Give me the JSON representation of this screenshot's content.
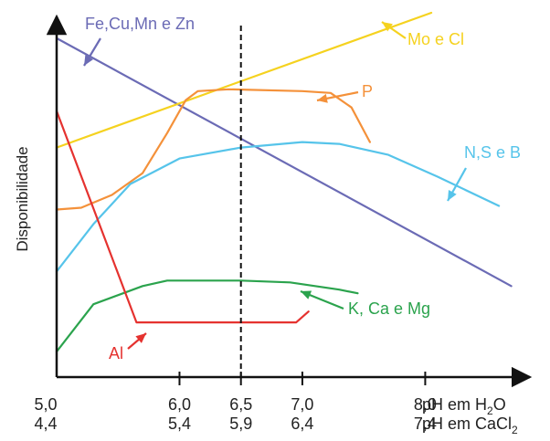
{
  "chart_data": {
    "type": "line",
    "ylabel": "Disponibilidade",
    "x_axis": {
      "title_line1": "pH em H",
      "title_line1_sub": "2",
      "title_line1_tail": "O",
      "title_line2": "pH em CaCl",
      "title_line2_sub": "2",
      "range_ph_h2o": [
        5.0,
        8.8
      ],
      "ticks": [
        {
          "h2o": 5.0,
          "h2o_label": "5,0",
          "cacl2_label": "4,4"
        },
        {
          "h2o": 6.0,
          "h2o_label": "6,0",
          "cacl2_label": "5,4"
        },
        {
          "h2o": 6.5,
          "h2o_label": "6,5",
          "cacl2_label": "5,9"
        },
        {
          "h2o": 7.0,
          "h2o_label": "7,0",
          "cacl2_label": "6,4"
        },
        {
          "h2o": 8.0,
          "h2o_label": "8,0",
          "cacl2_label": "7,4"
        }
      ]
    },
    "y_range": [
      0,
      100
    ],
    "reference_line": {
      "x": 6.5,
      "style": "dashed"
    },
    "series": [
      {
        "name": "Fe,Cu,Mn e Zn",
        "color": "#6b6bb5",
        "points": [
          [
            5.0,
            93
          ],
          [
            8.7,
            25
          ]
        ]
      },
      {
        "name": "Mo e Cl",
        "color": "#f5d21f",
        "points": [
          [
            5.0,
            63
          ],
          [
            8.05,
            100
          ]
        ]
      },
      {
        "name": "P",
        "color": "#f4913a",
        "points": [
          [
            5.0,
            46
          ],
          [
            5.2,
            46.5
          ],
          [
            5.45,
            50
          ],
          [
            5.7,
            56
          ],
          [
            5.9,
            67
          ],
          [
            6.05,
            76
          ],
          [
            6.15,
            78.5
          ],
          [
            6.4,
            79
          ],
          [
            7.0,
            78.5
          ],
          [
            7.23,
            78
          ],
          [
            7.4,
            74
          ],
          [
            7.55,
            64.5
          ]
        ]
      },
      {
        "name": "N,S e B",
        "color": "#56c4ea",
        "points": [
          [
            5.0,
            29
          ],
          [
            5.3,
            42
          ],
          [
            5.6,
            53
          ],
          [
            6.0,
            60
          ],
          [
            6.5,
            63
          ],
          [
            7.0,
            64.5
          ],
          [
            7.3,
            64
          ],
          [
            7.7,
            61
          ],
          [
            8.1,
            55
          ],
          [
            8.6,
            47
          ]
        ]
      },
      {
        "name": "K, Ca e Mg",
        "color": "#2ba34d",
        "points": [
          [
            5.0,
            7
          ],
          [
            5.3,
            20
          ],
          [
            5.7,
            25
          ],
          [
            5.9,
            26.5
          ],
          [
            6.5,
            26.5
          ],
          [
            6.9,
            26
          ],
          [
            7.3,
            24
          ],
          [
            7.45,
            23
          ]
        ]
      },
      {
        "name": "Al",
        "color": "#e5322f",
        "points": [
          [
            5.0,
            73
          ],
          [
            5.65,
            15
          ],
          [
            6.95,
            15
          ],
          [
            7.05,
            18
          ]
        ]
      }
    ],
    "annotations": [
      {
        "text": "Fe,Cu,Mn e Zn",
        "series": "Fe,Cu,Mn e Zn"
      },
      {
        "text": "Mo e Cl",
        "series": "Mo e Cl"
      },
      {
        "text": "P",
        "series": "P"
      },
      {
        "text": "N,S e B",
        "series": "N,S e B"
      },
      {
        "text": "K, Ca e Mg",
        "series": "K, Ca e Mg"
      },
      {
        "text": "Al",
        "series": "Al"
      }
    ]
  }
}
